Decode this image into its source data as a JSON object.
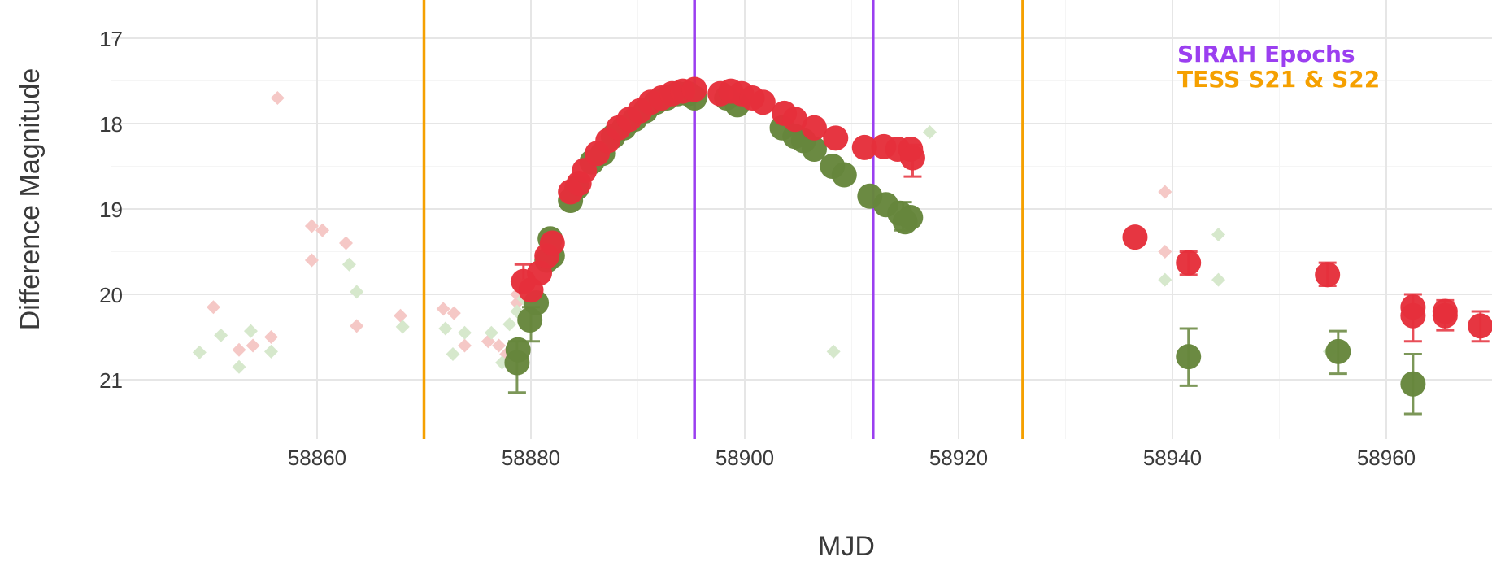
{
  "chart_data": {
    "type": "scatter",
    "xlabel": "MJD",
    "ylabel": "Difference Magnitude",
    "xlim": [
      58843,
      58970
    ],
    "ylim": [
      21.7,
      16.6
    ],
    "y_inverted": true,
    "x_ticks": [
      58860,
      58880,
      58900,
      58920,
      58940,
      58960
    ],
    "y_ticks": [
      17,
      18,
      19,
      20,
      21
    ],
    "grid": true,
    "legend_placement": "top-right",
    "annotations": [
      {
        "text": "SIRAH Epochs",
        "color": "#9b3ff0"
      },
      {
        "text": "TESS S21 & S22",
        "color": "#f5a000"
      }
    ],
    "vertical_lines": [
      {
        "x": 58870,
        "group": "TESS S21 & S22",
        "color": "#f5a000"
      },
      {
        "x": 58926,
        "group": "TESS S21 & S22",
        "color": "#f5a000"
      },
      {
        "x": 58895.3,
        "group": "SIRAH Epochs",
        "color": "#9b3ff0"
      },
      {
        "x": 58912,
        "group": "SIRAH Epochs",
        "color": "#9b3ff0"
      }
    ],
    "series": [
      {
        "color": "#f5c8c6",
        "marker": "diamond",
        "points": [
          [
            58850.3,
            20.15
          ],
          [
            58852.7,
            20.65
          ],
          [
            58854,
            20.6
          ],
          [
            58855.7,
            20.5
          ],
          [
            58856.3,
            17.7
          ],
          [
            58859.5,
            19.2
          ],
          [
            58860.5,
            19.25
          ],
          [
            58859.5,
            19.6
          ],
          [
            58862.7,
            19.4
          ],
          [
            58863.7,
            20.37
          ],
          [
            58867.8,
            20.25
          ],
          [
            58871.8,
            20.17
          ],
          [
            58872.8,
            20.22
          ],
          [
            58873.8,
            20.6
          ],
          [
            58876,
            20.55
          ],
          [
            58877,
            20.6
          ],
          [
            58877.7,
            20.7
          ],
          [
            58878.7,
            19.85
          ],
          [
            58878.7,
            20.0
          ],
          [
            58878.7,
            20.1
          ],
          [
            58879.3,
            19.9
          ],
          [
            58939.3,
            18.8
          ],
          [
            58939.3,
            19.5
          ]
        ]
      },
      {
        "color": "#d6e8cc",
        "marker": "diamond",
        "points": [
          [
            58849,
            20.68
          ],
          [
            58851,
            20.48
          ],
          [
            58852.7,
            20.85
          ],
          [
            58853.8,
            20.43
          ],
          [
            58855.7,
            20.67
          ],
          [
            58863,
            19.65
          ],
          [
            58863.7,
            19.97
          ],
          [
            58868,
            20.38
          ],
          [
            58872,
            20.4
          ],
          [
            58872.7,
            20.7
          ],
          [
            58873.8,
            20.45
          ],
          [
            58876.3,
            20.45
          ],
          [
            58877.3,
            20.8
          ],
          [
            58878,
            20.35
          ],
          [
            58878.7,
            20.2
          ],
          [
            58879.3,
            20.05
          ],
          [
            58908.3,
            20.67
          ],
          [
            58917.3,
            18.1
          ],
          [
            58939.3,
            19.83
          ],
          [
            58944.3,
            19.3
          ],
          [
            58944.3,
            19.83
          ],
          [
            58954.7,
            20.67
          ]
        ]
      },
      {
        "color": "#66863c",
        "marker": "circle",
        "points": [
          [
            58878.7,
            20.8
          ],
          [
            58878.8,
            20.65
          ],
          [
            58879.9,
            20.3
          ],
          [
            58880.5,
            20.1
          ],
          [
            58881.5,
            19.6
          ],
          [
            58881.8,
            19.35
          ],
          [
            58882,
            19.55
          ],
          [
            58883.7,
            18.9
          ],
          [
            58884.3,
            18.75
          ],
          [
            58885.7,
            18.45
          ],
          [
            58886.7,
            18.35
          ],
          [
            58887.7,
            18.15
          ],
          [
            58888.7,
            18.05
          ],
          [
            58889.7,
            17.95
          ],
          [
            58890.7,
            17.85
          ],
          [
            58891.7,
            17.75
          ],
          [
            58892.7,
            17.7
          ],
          [
            58893.7,
            17.65
          ],
          [
            58894.7,
            17.65
          ],
          [
            58895.3,
            17.7
          ],
          [
            58898.3,
            17.7
          ],
          [
            58899.3,
            17.78
          ],
          [
            58903.5,
            18.05
          ],
          [
            58904.7,
            18.15
          ],
          [
            58905.5,
            18.2
          ],
          [
            58906.5,
            18.3
          ],
          [
            58908.2,
            18.5
          ],
          [
            58909.3,
            18.6
          ],
          [
            58911.7,
            18.85
          ],
          [
            58913.2,
            18.95
          ],
          [
            58914.5,
            19.05
          ],
          [
            58915,
            19.15
          ],
          [
            58915.5,
            19.1
          ],
          [
            58941.5,
            20.73
          ],
          [
            58955.5,
            20.67
          ],
          [
            58962.5,
            21.05
          ]
        ]
      },
      {
        "color": "#e5303b",
        "marker": "circle",
        "points": [
          [
            58879.3,
            19.85
          ],
          [
            58880,
            19.95
          ],
          [
            58880.8,
            19.75
          ],
          [
            58881.5,
            19.55
          ],
          [
            58882,
            19.4
          ],
          [
            58883.7,
            18.8
          ],
          [
            58884.5,
            18.7
          ],
          [
            58885,
            18.55
          ],
          [
            58886.2,
            18.35
          ],
          [
            58887.2,
            18.2
          ],
          [
            58888.2,
            18.05
          ],
          [
            58889.2,
            17.95
          ],
          [
            58890.2,
            17.85
          ],
          [
            58891.2,
            17.75
          ],
          [
            58892.2,
            17.7
          ],
          [
            58893.2,
            17.65
          ],
          [
            58894.2,
            17.62
          ],
          [
            58895.3,
            17.6
          ],
          [
            58897.7,
            17.65
          ],
          [
            58898.7,
            17.62
          ],
          [
            58899.7,
            17.65
          ],
          [
            58900.7,
            17.7
          ],
          [
            58901.7,
            17.75
          ],
          [
            58903.7,
            17.88
          ],
          [
            58904.7,
            17.95
          ],
          [
            58906.5,
            18.05
          ],
          [
            58908.5,
            18.17
          ],
          [
            58911.2,
            18.28
          ],
          [
            58913,
            18.27
          ],
          [
            58914.3,
            18.3
          ],
          [
            58915.5,
            18.3
          ],
          [
            58915.7,
            18.4
          ],
          [
            58936.5,
            19.33
          ],
          [
            58941.5,
            19.63
          ],
          [
            58954.5,
            19.77
          ],
          [
            58962.5,
            20.15
          ],
          [
            58962.5,
            20.25
          ],
          [
            58965.5,
            20.2
          ],
          [
            58965.5,
            20.25
          ],
          [
            58968.8,
            20.37
          ]
        ]
      }
    ],
    "error_bars": [
      {
        "x": 58878.7,
        "y_low": 20.55,
        "y_high": 21.15,
        "color": "#66863c"
      },
      {
        "x": 58880,
        "y_low": 20.15,
        "y_high": 20.55,
        "color": "#66863c"
      },
      {
        "x": 58914.8,
        "y_low": 18.92,
        "y_high": 19.25,
        "color": "#66863c"
      },
      {
        "x": 58941.5,
        "y_low": 20.4,
        "y_high": 21.07,
        "color": "#66863c"
      },
      {
        "x": 58955.5,
        "y_low": 20.43,
        "y_high": 20.93,
        "color": "#66863c"
      },
      {
        "x": 58962.5,
        "y_low": 20.7,
        "y_high": 21.4,
        "color": "#66863c"
      },
      {
        "x": 58879.3,
        "y_low": 19.65,
        "y_high": 20.05,
        "color": "#e5303b"
      },
      {
        "x": 58915.7,
        "y_low": 18.25,
        "y_high": 18.62,
        "color": "#e5303b"
      },
      {
        "x": 58941.5,
        "y_low": 19.5,
        "y_high": 19.77,
        "color": "#e5303b"
      },
      {
        "x": 58954.5,
        "y_low": 19.63,
        "y_high": 19.9,
        "color": "#e5303b"
      },
      {
        "x": 58962.5,
        "y_low": 20.0,
        "y_high": 20.55,
        "color": "#e5303b"
      },
      {
        "x": 58965.5,
        "y_low": 20.07,
        "y_high": 20.42,
        "color": "#e5303b"
      },
      {
        "x": 58968.8,
        "y_low": 20.2,
        "y_high": 20.55,
        "color": "#e5303b"
      }
    ]
  }
}
